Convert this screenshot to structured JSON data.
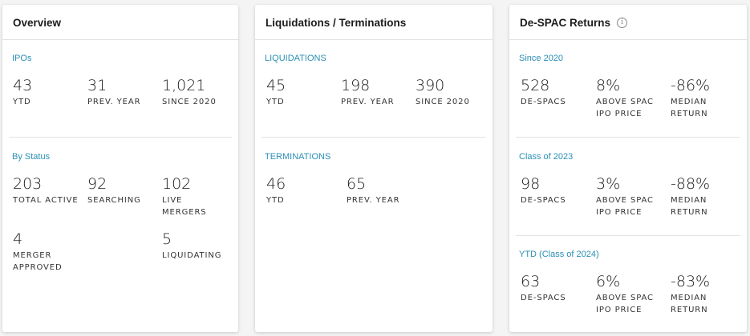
{
  "overview": {
    "title": "Overview",
    "ipos": {
      "title": "IPOs",
      "stats": [
        {
          "value": "43",
          "label": "YTD"
        },
        {
          "value": "31",
          "label": "PREV. YEAR"
        },
        {
          "value": "1,021",
          "label": "SINCE 2020"
        }
      ]
    },
    "by_status": {
      "title": "By Status",
      "stats": [
        {
          "value": "203",
          "label": "TOTAL ACTIVE"
        },
        {
          "value": "92",
          "label": "SEARCHING"
        },
        {
          "value": "102",
          "label": "LIVE MERGERS"
        },
        {
          "value": "4",
          "label": "MERGER APPROVED"
        },
        {
          "value": "5",
          "label": "LIQUIDATING"
        }
      ]
    }
  },
  "liquidations": {
    "title": "Liquidations / Terminations",
    "liq": {
      "title": "LIQUIDATIONS",
      "stats": [
        {
          "value": "45",
          "label": "YTD"
        },
        {
          "value": "198",
          "label": "PREV. YEAR"
        },
        {
          "value": "390",
          "label": "SINCE 2020"
        }
      ]
    },
    "term": {
      "title": "TERMINATIONS",
      "stats": [
        {
          "value": "46",
          "label": "YTD"
        },
        {
          "value": "65",
          "label": "PREV. YEAR"
        }
      ]
    }
  },
  "despac": {
    "title": "De-SPAC Returns",
    "info_icon": "info-icon",
    "since2020": {
      "title": "Since 2020",
      "stats": [
        {
          "value": "528",
          "label": "DE-SPACS"
        },
        {
          "value": "8%",
          "label": "ABOVE SPAC IPO PRICE"
        },
        {
          "value": "-86%",
          "label": "MEDIAN RETURN"
        }
      ]
    },
    "class2023": {
      "title": "Class of 2023",
      "stats": [
        {
          "value": "98",
          "label": "DE-SPACS"
        },
        {
          "value": "3%",
          "label": "ABOVE SPAC IPO PRICE"
        },
        {
          "value": "-88%",
          "label": "MEDIAN RETURN"
        }
      ]
    },
    "ytd2024": {
      "title": "YTD (Class of 2024)",
      "stats": [
        {
          "value": "63",
          "label": "DE-SPACS"
        },
        {
          "value": "6%",
          "label": "ABOVE SPAC IPO PRICE"
        },
        {
          "value": "-83%",
          "label": "MEDIAN RETURN"
        }
      ]
    }
  },
  "colors": {
    "accent": "#2a8fb5",
    "card_bg": "#ffffff",
    "page_bg": "#f4f4f4"
  }
}
